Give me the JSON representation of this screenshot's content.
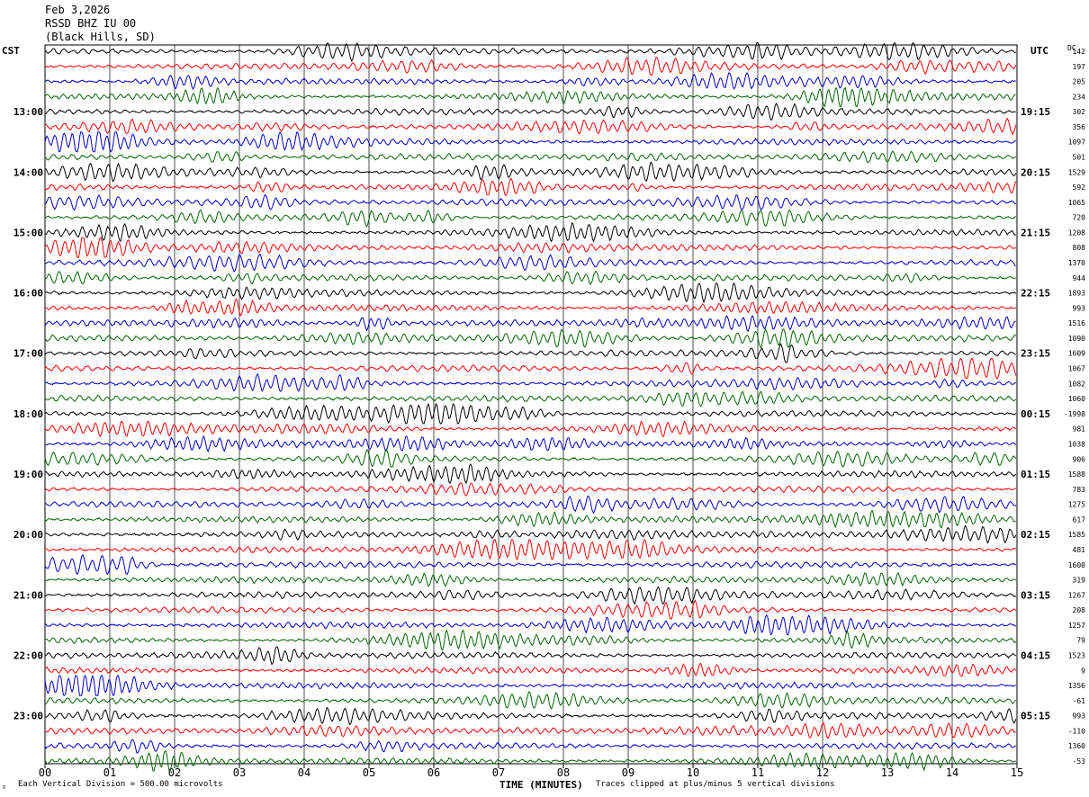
{
  "header": {
    "date": "Feb 3,2026",
    "station": "RSSD BHZ IU 00",
    "location": "(Black Hills, SD)"
  },
  "left_tz": "CST",
  "right_tz": "UTC",
  "dc_label": "DC",
  "footer": {
    "scale_note": "Each Vertical Division =  500.00 microvolts",
    "clip_note": "Traces clipped at plus/minus 5 vertical divisions"
  },
  "colors": {
    "trace_cycle": [
      "#000000",
      "#ff0000",
      "#0000cc",
      "#006600"
    ],
    "grid": "#000000"
  },
  "chart_data": {
    "type": "line",
    "xlabel": "TIME (MINUTES)",
    "x_ticks": [
      "00",
      "01",
      "02",
      "03",
      "04",
      "05",
      "06",
      "07",
      "08",
      "09",
      "10",
      "11",
      "12",
      "13",
      "14",
      "15"
    ],
    "x_range": [
      0,
      15
    ],
    "left_hour_labels": [
      "13:00",
      "14:00",
      "15:00",
      "16:00",
      "17:00",
      "18:00",
      "19:00",
      "20:00",
      "21:00",
      "22:00",
      "23:00"
    ],
    "right_hour_labels": [
      "19:15",
      "20:15",
      "21:15",
      "22:15",
      "23:15",
      "00:15",
      "01:15",
      "02:15",
      "03:15",
      "04:15",
      "05:15"
    ],
    "hour_label_trace_index": [
      4,
      8,
      12,
      16,
      20,
      24,
      28,
      32,
      36,
      40,
      44
    ],
    "dc_offsets": [
      "142",
      "197",
      "205",
      "234",
      "302",
      "356",
      "1097",
      "501",
      "1529",
      "592",
      "1065",
      "720",
      "1208",
      "808",
      "1370",
      "944",
      "1893",
      "993",
      "1516",
      "1090",
      "1609",
      "1067",
      "1082",
      "1060",
      "-1998",
      "981",
      "1038",
      "906",
      "1588",
      "783",
      "1275",
      "617",
      "1585",
      "481",
      "1600",
      "319",
      "1267",
      "208",
      "1257",
      "79",
      "1523",
      "9",
      "1356",
      "-61",
      "993",
      "-110",
      "1360",
      "-53"
    ],
    "trace_count": 48,
    "traces_per_hour": 4
  }
}
